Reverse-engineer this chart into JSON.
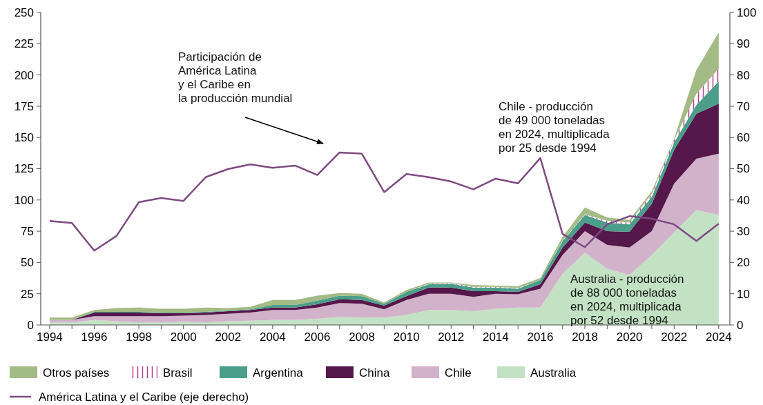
{
  "chart_data": {
    "type": "area",
    "stacked": true,
    "x": [
      1994,
      1995,
      1996,
      1997,
      1998,
      1999,
      2000,
      2001,
      2002,
      2003,
      2004,
      2005,
      2006,
      2007,
      2008,
      2009,
      2010,
      2011,
      2012,
      2013,
      2014,
      2015,
      2016,
      2017,
      2018,
      2019,
      2020,
      2021,
      2022,
      2023,
      2024
    ],
    "series": [
      {
        "name": "Australia",
        "color": "#c3e2c4",
        "values": [
          2,
          2,
          4,
          3,
          2,
          2,
          2.5,
          2,
          3,
          3.5,
          4,
          4,
          5,
          6.5,
          6,
          6,
          8,
          12,
          12,
          11,
          13,
          14,
          14,
          41,
          58,
          45,
          40,
          56,
          74,
          92,
          88
        ]
      },
      {
        "name": "Chile",
        "color": "#d2b1cb",
        "values": [
          2,
          2,
          3,
          4,
          5,
          5,
          5,
          6,
          6,
          6.5,
          8,
          8,
          9,
          11,
          11,
          6.5,
          12,
          13,
          13,
          11.5,
          12,
          10.5,
          15,
          15,
          17,
          19,
          22,
          19,
          39,
          41,
          49
        ]
      },
      {
        "name": "China",
        "color": "#56174b",
        "values": [
          0,
          0,
          3,
          3,
          3,
          2.5,
          2,
          2,
          2,
          2,
          2,
          2,
          2.5,
          3,
          3,
          3,
          3,
          5,
          5,
          4.5,
          2,
          2,
          3.5,
          6,
          7,
          11,
          12.5,
          22,
          27,
          36,
          40
        ]
      },
      {
        "name": "Argentina",
        "color": "#4a9e8a",
        "values": [
          0,
          0,
          0.5,
          0.5,
          0.5,
          0.5,
          0.5,
          0.5,
          0.5,
          0.5,
          2,
          2,
          3,
          3,
          3,
          1.5,
          3.5,
          2.5,
          3,
          3,
          3,
          2.5,
          3.5,
          5,
          6,
          7,
          6,
          5.5,
          6,
          7,
          18
        ]
      },
      {
        "name": "Brasil",
        "color": "#b0408a",
        "values": [
          0,
          0,
          0,
          0,
          0,
          0,
          0,
          0,
          0,
          0,
          0,
          0,
          0,
          0,
          0,
          0,
          0,
          0.5,
          0.5,
          0.5,
          0.5,
          0.5,
          0,
          0.5,
          0.5,
          1.5,
          1.5,
          2.5,
          2,
          9,
          10
        ]
      },
      {
        "name": "Otros países",
        "color": "#a3bb85",
        "values": [
          2,
          2,
          1.5,
          3,
          3.5,
          3,
          3,
          3.5,
          2,
          2,
          4,
          4,
          4,
          2,
          2,
          1,
          1.5,
          1,
          0.5,
          1.5,
          1,
          1.5,
          1.5,
          3,
          5.5,
          2.5,
          2,
          2,
          1,
          19,
          29
        ]
      },
      {
        "name": "América Latina y el Caribe (eje derecho)",
        "type": "line",
        "axis": "y2",
        "color": "#7d4a80",
        "values": [
          33.3,
          32.6,
          23.8,
          28.5,
          39.3,
          40.6,
          39.7,
          47.3,
          49.9,
          51.4,
          50.3,
          51,
          48,
          55.2,
          54.8,
          42.5,
          48.3,
          47.3,
          45.9,
          43.4,
          46.8,
          45.3,
          53.4,
          29.1,
          24.9,
          32.2,
          34.8,
          34,
          32.2,
          26.9,
          32.4
        ]
      }
    ],
    "xlim": [
      1993.6,
      2024.5
    ],
    "xticks": [
      1994,
      {
        "value": 1995,
        "label": null
      },
      1996,
      {
        "value": 1997,
        "label": null
      },
      1998,
      {
        "value": 1999,
        "label": null
      },
      2000,
      {
        "value": 2001,
        "label": null
      },
      2002,
      {
        "value": 2003,
        "label": null
      },
      2004,
      {
        "value": 2005,
        "label": null
      },
      2006,
      {
        "value": 2007,
        "label": null
      },
      2008,
      {
        "value": 2009,
        "label": null
      },
      2010,
      {
        "value": 2011,
        "label": null
      },
      2012,
      {
        "value": 2013,
        "label": null
      },
      2014,
      {
        "value": 2015,
        "label": null
      },
      2016,
      {
        "value": 2017,
        "label": null
      },
      2018,
      {
        "value": 2019,
        "label": null
      },
      2020,
      {
        "value": 2021,
        "label": null
      },
      2022,
      {
        "value": 2023,
        "label": null
      },
      2024
    ],
    "ylim": [
      0,
      250
    ],
    "yticks": [
      0,
      25,
      50,
      75,
      100,
      125,
      150,
      175,
      200,
      225,
      250
    ],
    "y2lim": [
      0,
      100
    ],
    "y2ticks": [
      0,
      10,
      20,
      30,
      40,
      50,
      60,
      70,
      80,
      90,
      100
    ],
    "legend": "bottom",
    "annotations": [
      "Participación de\nAmérica Latina\ny el Caribe en\nla producción mundial",
      "Chile - producción\nde 49 000 toneladas\nen 2024, multiplicada\npor 25 desde 1994",
      "Australia - producción\nde 88 000 toneladas\nen 2024, multiplicada\npor 52 desde 1994"
    ]
  }
}
